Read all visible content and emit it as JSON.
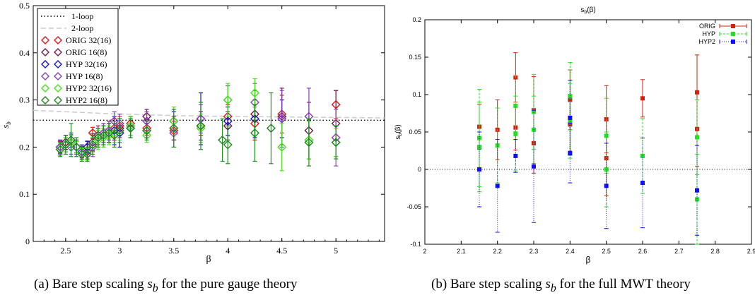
{
  "colors": {
    "ORIG_32": "#ee1111",
    "ORIG_16": "#7a1b50",
    "HYP_32": "#1515c8",
    "HYP_16": "#8a3fc0",
    "HYP2_32": "#44e61a",
    "HYP2_16": "#1d8a1d",
    "right_ORIG": "#d42010",
    "right_HYP": "#20e020",
    "right_HYP2": "#1010ee"
  },
  "captions": {
    "a_prefix": "(a) Bare step scaling ",
    "a_suffix": " for the pure gauge theory",
    "b_prefix": "(b) Bare step scaling ",
    "b_suffix": " for the full MWT theory",
    "s_main": "s",
    "s_sub": "b"
  },
  "chart_data": [
    {
      "type": "scatter",
      "xlabel": "β",
      "ylabel": "s_b",
      "xlim": [
        2.2,
        5.45
      ],
      "ylim": [
        0,
        0.5
      ],
      "xticks": [
        "2.5",
        "3",
        "3.5",
        "4",
        "4.5",
        "5"
      ],
      "yticks": [
        "0",
        "0.1",
        "0.2",
        "0.3",
        "0.4",
        "0.5"
      ],
      "grid": false,
      "legend_position": "top-left",
      "lines": [
        {
          "name": "1-loop",
          "style": "dotted",
          "points": [
            [
              2.2,
              0.257
            ],
            [
              5.45,
              0.257
            ]
          ]
        },
        {
          "name": "2-loop",
          "style": "dashed",
          "points": [
            [
              2.2,
              0.278
            ],
            [
              2.6,
              0.274
            ],
            [
              3.0,
              0.27
            ],
            [
              3.5,
              0.267
            ],
            [
              4.0,
              0.265
            ],
            [
              4.5,
              0.264
            ],
            [
              5.45,
              0.262
            ]
          ]
        }
      ],
      "series": [
        {
          "name": "ORIG 32(16)",
          "points": [
            [
              2.45,
              0.2,
              0.012
            ],
            [
              2.5,
              0.21,
              0.015
            ],
            [
              2.55,
              0.21,
              0.015
            ],
            [
              2.6,
              0.2,
              0.012
            ],
            [
              2.65,
              0.19,
              0.012
            ],
            [
              2.7,
              0.2,
              0.013
            ],
            [
              2.75,
              0.23,
              0.012
            ],
            [
              2.8,
              0.22,
              0.015
            ],
            [
              2.85,
              0.23,
              0.02
            ],
            [
              2.9,
              0.235,
              0.02
            ],
            [
              2.95,
              0.24,
              0.02
            ],
            [
              3.0,
              0.245,
              0.02
            ],
            [
              3.1,
              0.25,
              0.015
            ],
            [
              3.25,
              0.24,
              0.015
            ],
            [
              3.5,
              0.235,
              0.02
            ],
            [
              3.75,
              0.245,
              0.02
            ],
            [
              4.0,
              0.265,
              0.025
            ],
            [
              4.25,
              0.25,
              0.035
            ],
            [
              4.5,
              0.27,
              0.04
            ],
            [
              5.0,
              0.29,
              0.03
            ]
          ]
        },
        {
          "name": "ORIG 16(8)",
          "points": [
            [
              2.45,
              0.2,
              0.015
            ],
            [
              2.5,
              0.21,
              0.015
            ],
            [
              2.55,
              0.21,
              0.016
            ],
            [
              2.6,
              0.2,
              0.015
            ],
            [
              2.65,
              0.19,
              0.015
            ],
            [
              2.7,
              0.19,
              0.015
            ],
            [
              2.75,
              0.21,
              0.018
            ],
            [
              2.8,
              0.225,
              0.02
            ],
            [
              2.85,
              0.22,
              0.02
            ],
            [
              2.9,
              0.23,
              0.02
            ],
            [
              2.95,
              0.235,
              0.02
            ],
            [
              3.0,
              0.24,
              0.02
            ],
            [
              3.1,
              0.245,
              0.02
            ],
            [
              3.25,
              0.265,
              0.015
            ],
            [
              3.5,
              0.24,
              0.025
            ],
            [
              3.75,
              0.245,
              0.03
            ],
            [
              4.0,
              0.245,
              0.03
            ],
            [
              4.25,
              0.27,
              0.05
            ],
            [
              4.5,
              0.265,
              0.06
            ],
            [
              4.75,
              0.235,
              0.06
            ],
            [
              5.0,
              0.25,
              0.07
            ]
          ]
        },
        {
          "name": "HYP 32(16)",
          "points": [
            [
              2.45,
              0.2,
              0.013
            ],
            [
              2.5,
              0.205,
              0.015
            ],
            [
              2.55,
              0.215,
              0.015
            ],
            [
              2.6,
              0.2,
              0.012
            ],
            [
              2.65,
              0.19,
              0.012
            ],
            [
              2.7,
              0.2,
              0.012
            ],
            [
              2.75,
              0.205,
              0.015
            ],
            [
              2.8,
              0.22,
              0.02
            ],
            [
              2.85,
              0.225,
              0.02
            ],
            [
              2.9,
              0.23,
              0.02
            ],
            [
              2.95,
              0.235,
              0.03
            ],
            [
              3.0,
              0.23,
              0.03
            ],
            [
              3.1,
              0.24,
              0.02
            ],
            [
              3.25,
              0.235,
              0.015
            ],
            [
              3.5,
              0.255,
              0.02
            ],
            [
              3.75,
              0.26,
              0.055
            ],
            [
              4.0,
              0.255,
              0.03
            ],
            [
              4.25,
              0.26,
              0.04
            ],
            [
              4.5,
              0.26,
              0.04
            ]
          ]
        },
        {
          "name": "HYP 16(8)",
          "points": [
            [
              2.45,
              0.2,
              0.015
            ],
            [
              2.5,
              0.205,
              0.015
            ],
            [
              2.55,
              0.2,
              0.015
            ],
            [
              2.6,
              0.2,
              0.015
            ],
            [
              2.65,
              0.19,
              0.015
            ],
            [
              2.7,
              0.185,
              0.015
            ],
            [
              2.75,
              0.2,
              0.02
            ],
            [
              2.8,
              0.22,
              0.02
            ],
            [
              2.85,
              0.23,
              0.02
            ],
            [
              2.9,
              0.235,
              0.02
            ],
            [
              2.95,
              0.255,
              0.02
            ],
            [
              3.0,
              0.25,
              0.02
            ],
            [
              3.1,
              0.245,
              0.02
            ],
            [
              3.25,
              0.255,
              0.02
            ],
            [
              3.5,
              0.23,
              0.03
            ],
            [
              3.75,
              0.26,
              0.03
            ],
            [
              4.0,
              0.3,
              0.03
            ],
            [
              4.25,
              0.295,
              0.04
            ],
            [
              4.5,
              0.26,
              0.06
            ],
            [
              4.75,
              0.265,
              0.06
            ],
            [
              5.0,
              0.22,
              0.06
            ]
          ]
        },
        {
          "name": "HYP2 32(16)",
          "points": [
            [
              2.45,
              0.195,
              0.013
            ],
            [
              2.5,
              0.205,
              0.015
            ],
            [
              2.55,
              0.21,
              0.015
            ],
            [
              2.6,
              0.2,
              0.012
            ],
            [
              2.65,
              0.185,
              0.012
            ],
            [
              2.7,
              0.185,
              0.012
            ],
            [
              2.75,
              0.205,
              0.015
            ],
            [
              2.8,
              0.215,
              0.02
            ],
            [
              2.85,
              0.22,
              0.02
            ],
            [
              2.9,
              0.225,
              0.02
            ],
            [
              2.95,
              0.23,
              0.02
            ],
            [
              3.0,
              0.235,
              0.02
            ],
            [
              3.1,
              0.245,
              0.02
            ],
            [
              3.25,
              0.225,
              0.015
            ],
            [
              3.5,
              0.255,
              0.03
            ],
            [
              3.75,
              0.24,
              0.03
            ],
            [
              4.0,
              0.3,
              0.035
            ],
            [
              4.25,
              0.315,
              0.03
            ],
            [
              4.5,
              0.2,
              0.05
            ],
            [
              4.75,
              0.215,
              0.04
            ],
            [
              5.0,
              0.21,
              0.03
            ]
          ]
        },
        {
          "name": "HYP2 16(8)",
          "points": [
            [
              2.45,
              0.195,
              0.015
            ],
            [
              2.5,
              0.205,
              0.02
            ],
            [
              2.55,
              0.215,
              0.035
            ],
            [
              2.6,
              0.2,
              0.02
            ],
            [
              2.65,
              0.185,
              0.015
            ],
            [
              2.7,
              0.185,
              0.015
            ],
            [
              2.75,
              0.205,
              0.02
            ],
            [
              2.8,
              0.22,
              0.02
            ],
            [
              2.85,
              0.225,
              0.02
            ],
            [
              2.9,
              0.23,
              0.02
            ],
            [
              2.95,
              0.225,
              0.025
            ],
            [
              3.0,
              0.235,
              0.025
            ],
            [
              3.1,
              0.24,
              0.02
            ],
            [
              3.25,
              0.235,
              0.02
            ],
            [
              3.5,
              0.24,
              0.04
            ],
            [
              3.75,
              0.245,
              0.05
            ],
            [
              3.95,
              0.215,
              0.045
            ],
            [
              4.0,
              0.205,
              0.04
            ],
            [
              4.25,
              0.23,
              0.06
            ],
            [
              4.4,
              0.24,
              0.075
            ],
            [
              4.75,
              0.21,
              0.05
            ],
            [
              5.0,
              0.21,
              0.035
            ]
          ]
        }
      ]
    },
    {
      "type": "scatter",
      "title": "s_b(β)",
      "xlabel": "β",
      "ylabel": "s_b(β)",
      "xlim": [
        2.0,
        2.9
      ],
      "ylim": [
        -0.1,
        0.2
      ],
      "xticks": [
        "2",
        "2.1",
        "2.2",
        "2.3",
        "2.4",
        "2.5",
        "2.6",
        "2.7",
        "2.8",
        "2.9"
      ],
      "yticks": [
        "-0.1",
        "-0.05",
        "0",
        "0.05",
        "0.1",
        "0.15",
        "0.2"
      ],
      "grid": false,
      "legend_position": "top-right",
      "zero_line": true,
      "series": [
        {
          "name": "ORIG",
          "style": "solid",
          "points": [
            [
              2.15,
              0.057,
              0.03
            ],
            [
              2.2,
              0.053,
              0.04
            ],
            [
              2.25,
              0.123,
              0.033
            ],
            [
              2.25,
              0.056,
              0.03
            ],
            [
              2.3,
              0.079,
              0.045
            ],
            [
              2.3,
              0.035,
              0.04
            ],
            [
              2.4,
              0.093,
              0.04
            ],
            [
              2.4,
              0.06,
              0.04
            ],
            [
              2.5,
              0.067,
              0.045
            ],
            [
              2.5,
              0.015,
              0.05
            ],
            [
              2.6,
              0.095,
              0.025
            ],
            [
              2.75,
              0.103,
              0.05
            ],
            [
              2.75,
              0.054,
              0.05
            ]
          ]
        },
        {
          "name": "HYP",
          "style": "dashed",
          "points": [
            [
              2.15,
              0.042,
              0.065
            ],
            [
              2.15,
              0.03,
              0.06
            ],
            [
              2.2,
              0.032,
              0.05
            ],
            [
              2.25,
              0.085,
              0.04
            ],
            [
              2.25,
              0.048,
              0.05
            ],
            [
              2.3,
              0.077,
              0.05
            ],
            [
              2.3,
              0.053,
              0.045
            ],
            [
              2.4,
              0.098,
              0.045
            ],
            [
              2.4,
              0.065,
              0.05
            ],
            [
              2.5,
              0.045,
              0.05
            ],
            [
              2.5,
              0.0,
              0.05
            ],
            [
              2.6,
              0.018,
              0.05
            ],
            [
              2.75,
              0.043,
              0.05
            ],
            [
              2.75,
              -0.04,
              0.06
            ]
          ]
        },
        {
          "name": "HYP2",
          "style": "dotted",
          "points": [
            [
              2.15,
              0.0,
              0.05
            ],
            [
              2.2,
              -0.022,
              0.062
            ],
            [
              2.25,
              0.018,
              0.022
            ],
            [
              2.3,
              0.004,
              0.075
            ],
            [
              2.4,
              0.022,
              0.04
            ],
            [
              2.4,
              0.069,
              0.05
            ],
            [
              2.5,
              -0.022,
              0.057
            ],
            [
              2.6,
              -0.018,
              0.06
            ],
            [
              2.75,
              -0.028,
              0.06
            ]
          ]
        }
      ]
    }
  ]
}
